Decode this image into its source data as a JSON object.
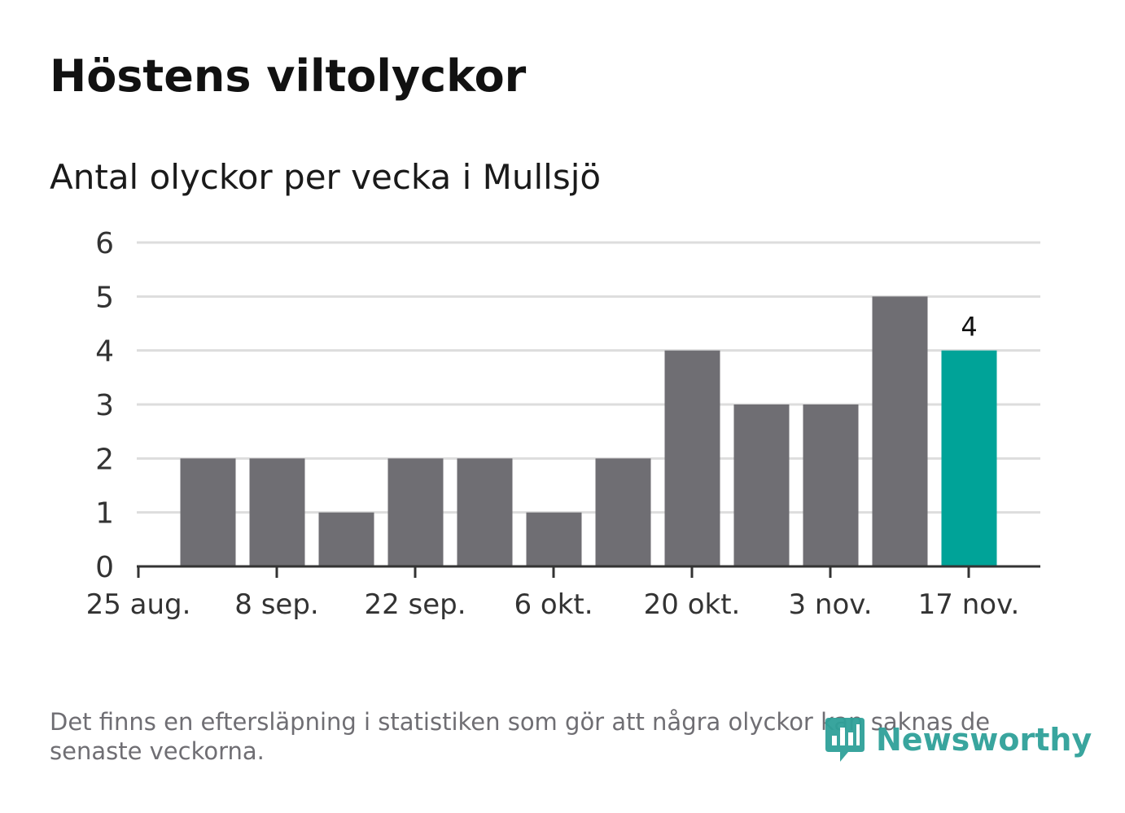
{
  "title": "Höstens viltolyckor",
  "subtitle": "Antal olyckor per vecka i Mullsjö",
  "footnote": "Det finns en eftersläpning i statistiken som gör att några olyckor kan saknas de senaste veckorna.",
  "logo": {
    "text": "Newsworthy",
    "icon": "newsworthy-logo-icon",
    "color": "#2fa199"
  },
  "colors": {
    "bar": "#6f6e73",
    "highlight": "#00a398",
    "grid": "#dddddd",
    "axis": "#333333"
  },
  "chart_data": {
    "type": "bar",
    "x": [
      "2020-08-31",
      "2020-09-07",
      "2020-09-14",
      "2020-09-21",
      "2020-09-28",
      "2020-10-05",
      "2020-10-12",
      "2020-10-19",
      "2020-10-26",
      "2020-11-02",
      "2020-11-09",
      "2020-11-16"
    ],
    "values": [
      2,
      2,
      1,
      2,
      2,
      1,
      2,
      4,
      3,
      3,
      5,
      4
    ],
    "highlight_index": 11,
    "data_labels": [
      {
        "index": 11,
        "text": "4"
      }
    ],
    "yticks": [
      "0",
      "1",
      "2",
      "3",
      "4",
      "5",
      "6"
    ],
    "ylim": [
      0,
      6
    ],
    "xticks": [
      "25 aug.",
      "8 sep.",
      "22 sep.",
      "6 okt.",
      "20 okt.",
      "3 nov.",
      "17 nov."
    ],
    "grid": true,
    "xlabel": "",
    "ylabel": ""
  }
}
